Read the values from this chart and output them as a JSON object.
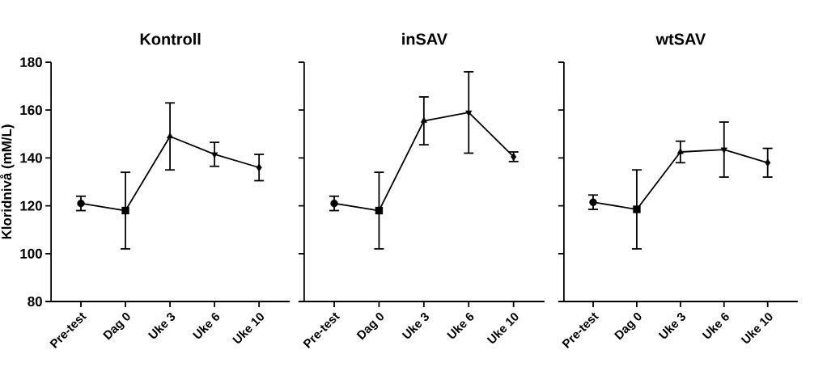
{
  "chart_data": [
    {
      "type": "line",
      "title": "Kontroll",
      "ylabel": "Kloridnivå (mM/L)",
      "categories": [
        "Pre-test",
        "Dag 0",
        "Uke 3",
        "Uke 6",
        "Uke 10"
      ],
      "series": [
        {
          "color": "#000000",
          "values": [
            121,
            118,
            149,
            141.5,
            136
          ],
          "errors": [
            3,
            16,
            14,
            5,
            5.5
          ],
          "marker": [
            "circle",
            "square",
            "triangle",
            "triangle-down",
            "diamond"
          ]
        }
      ],
      "ylim": [
        80,
        180
      ],
      "yticks": [
        80,
        100,
        120,
        140,
        160,
        180
      ]
    },
    {
      "type": "line",
      "title": "inSAV",
      "categories": [
        "Pre-test",
        "Dag 0",
        "Uke 3",
        "Uke 6",
        "Uke 10"
      ],
      "series": [
        {
          "color": "#000000",
          "values": [
            121,
            118,
            155.5,
            159,
            140.5
          ],
          "errors": [
            3,
            16,
            10,
            17,
            2
          ],
          "marker": [
            "circle",
            "square",
            "triangle",
            "triangle-down",
            "diamond"
          ]
        }
      ],
      "ylim": [
        80,
        180
      ],
      "yticks": [
        80,
        100,
        120,
        140,
        160,
        180
      ],
      "tick_labels": "x"
    },
    {
      "type": "line",
      "title": "wtSAV",
      "categories": [
        "Pre-test",
        "Dag 0",
        "Uke 3",
        "Uke 6",
        "Uke 10"
      ],
      "series": [
        {
          "color": "#000000",
          "values": [
            121.5,
            118.5,
            142.5,
            143.5,
            138
          ],
          "errors": [
            3,
            16.5,
            4.5,
            11.5,
            6
          ],
          "marker": [
            "circle",
            "square",
            "triangle",
            "triangle-down",
            "diamond"
          ]
        }
      ],
      "ylim": [
        80,
        180
      ],
      "yticks": [
        80,
        100,
        120,
        140,
        160,
        180
      ],
      "tick_labels": "x"
    }
  ]
}
